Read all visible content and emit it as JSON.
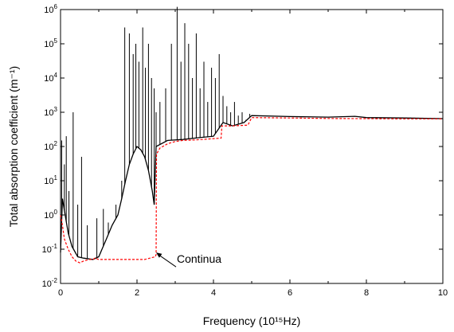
{
  "chart_data": {
    "type": "line",
    "xlabel": "Frequency (10¹⁵Hz)",
    "ylabel": "Total absorption coefficient (m⁻¹)",
    "xlim": [
      0,
      10
    ],
    "ylim": [
      0.01,
      1000000
    ],
    "yscale": "log",
    "grid": false,
    "x_ticks": [
      0,
      2,
      4,
      6,
      8,
      10
    ],
    "y_ticks": [
      0.01,
      0.1,
      1,
      10,
      100,
      1000,
      10000,
      100000,
      1000000
    ],
    "y_tick_labels": [
      {
        "base": "10",
        "exp": "-2"
      },
      {
        "base": "10",
        "exp": "-1"
      },
      {
        "base": "10",
        "exp": "0"
      },
      {
        "base": "10",
        "exp": "1"
      },
      {
        "base": "10",
        "exp": "2"
      },
      {
        "base": "10",
        "exp": "3"
      },
      {
        "base": "10",
        "exp": "4"
      },
      {
        "base": "10",
        "exp": "5"
      },
      {
        "base": "10",
        "exp": "6"
      }
    ],
    "series": [
      {
        "style": "solid",
        "color": "#000000",
        "lines": [
          {
            "x": 0.03,
            "y": 150
          },
          {
            "x": 0.1,
            "y": 30
          },
          {
            "x": 0.15,
            "y": 200
          },
          {
            "x": 0.22,
            "y": 5
          },
          {
            "x": 0.33,
            "y": 1000
          },
          {
            "x": 0.45,
            "y": 2
          },
          {
            "x": 0.55,
            "y": 50
          },
          {
            "x": 0.7,
            "y": 0.5
          },
          {
            "x": 0.95,
            "y": 0.8
          },
          {
            "x": 1.12,
            "y": 1.5
          },
          {
            "x": 1.25,
            "y": 0.6
          },
          {
            "x": 1.45,
            "y": 2
          },
          {
            "x": 1.6,
            "y": 10
          },
          {
            "x": 1.68,
            "y": 300000
          },
          {
            "x": 1.8,
            "y": 200000
          },
          {
            "x": 1.9,
            "y": 50000
          },
          {
            "x": 1.97,
            "y": 100000
          },
          {
            "x": 2.05,
            "y": 30000
          },
          {
            "x": 2.15,
            "y": 300000
          },
          {
            "x": 2.22,
            "y": 20000
          },
          {
            "x": 2.3,
            "y": 100000
          },
          {
            "x": 2.38,
            "y": 10000
          },
          {
            "x": 2.45,
            "y": 5000
          },
          {
            "x": 2.5,
            "y": 1000
          },
          {
            "x": 2.6,
            "y": 2000
          },
          {
            "x": 2.75,
            "y": 5000
          },
          {
            "x": 2.9,
            "y": 100000
          },
          {
            "x": 3.05,
            "y": 1200000
          },
          {
            "x": 3.15,
            "y": 30000
          },
          {
            "x": 3.25,
            "y": 400000
          },
          {
            "x": 3.35,
            "y": 100000
          },
          {
            "x": 3.45,
            "y": 10000
          },
          {
            "x": 3.55,
            "y": 200000
          },
          {
            "x": 3.65,
            "y": 5000
          },
          {
            "x": 3.75,
            "y": 30000
          },
          {
            "x": 3.85,
            "y": 2000
          },
          {
            "x": 3.95,
            "y": 20000
          },
          {
            "x": 4.05,
            "y": 10000
          },
          {
            "x": 4.15,
            "y": 50000
          },
          {
            "x": 4.25,
            "y": 3000
          },
          {
            "x": 4.35,
            "y": 1500
          },
          {
            "x": 4.45,
            "y": 1000
          },
          {
            "x": 4.55,
            "y": 2000
          },
          {
            "x": 4.65,
            "y": 800
          },
          {
            "x": 4.75,
            "y": 1000
          },
          {
            "x": 4.85,
            "y": 600
          },
          {
            "x": 4.95,
            "y": 900
          }
        ],
        "envelope": [
          [
            0.0,
            0.08
          ],
          [
            0.05,
            3
          ],
          [
            0.12,
            1
          ],
          [
            0.2,
            0.3
          ],
          [
            0.3,
            0.12
          ],
          [
            0.45,
            0.06
          ],
          [
            0.6,
            0.055
          ],
          [
            0.85,
            0.05
          ],
          [
            1.0,
            0.06
          ],
          [
            1.2,
            0.2
          ],
          [
            1.35,
            0.5
          ],
          [
            1.5,
            1
          ],
          [
            1.6,
            3
          ],
          [
            1.7,
            10
          ],
          [
            1.8,
            30
          ],
          [
            1.9,
            60
          ],
          [
            2.0,
            100
          ],
          [
            2.1,
            80
          ],
          [
            2.2,
            50
          ],
          [
            2.3,
            20
          ],
          [
            2.4,
            5
          ],
          [
            2.45,
            2
          ],
          [
            2.5,
            100
          ],
          [
            2.8,
            150
          ],
          [
            3.2,
            160
          ],
          [
            3.6,
            180
          ],
          [
            4.0,
            200
          ],
          [
            4.25,
            500
          ],
          [
            4.5,
            400
          ],
          [
            4.8,
            500
          ],
          [
            5.0,
            800
          ],
          [
            6.0,
            750
          ],
          [
            7.0,
            720
          ],
          [
            7.7,
            760
          ],
          [
            8.0,
            700
          ],
          [
            9.0,
            680
          ],
          [
            10.0,
            650
          ]
        ]
      },
      {
        "style": "dashed",
        "color": "#ff0000",
        "points": [
          [
            0.0,
            1
          ],
          [
            0.05,
            0.5
          ],
          [
            0.1,
            0.2
          ],
          [
            0.2,
            0.1
          ],
          [
            0.3,
            0.06
          ],
          [
            0.4,
            0.045
          ],
          [
            0.5,
            0.04
          ],
          [
            0.6,
            0.045
          ],
          [
            0.75,
            0.05
          ],
          [
            0.85,
            0.05
          ],
          [
            0.9,
            0.055
          ],
          [
            1.0,
            0.05
          ],
          [
            1.6,
            0.05
          ],
          [
            2.2,
            0.05
          ],
          [
            2.48,
            0.06
          ],
          [
            2.5,
            0.07
          ],
          [
            2.51,
            60
          ],
          [
            2.6,
            90
          ],
          [
            2.8,
            120
          ],
          [
            3.0,
            140
          ],
          [
            3.2,
            150
          ],
          [
            3.5,
            155
          ],
          [
            3.7,
            160
          ],
          [
            4.0,
            170
          ],
          [
            4.2,
            175
          ],
          [
            4.22,
            400
          ],
          [
            4.5,
            400
          ],
          [
            4.9,
            420
          ],
          [
            5.0,
            700
          ],
          [
            6.0,
            680
          ],
          [
            7.0,
            660
          ],
          [
            8.0,
            650
          ],
          [
            9.0,
            640
          ],
          [
            10.0,
            640
          ]
        ]
      }
    ],
    "annotations": [
      {
        "text": "Continua",
        "arrow_to": {
          "x": 2.5,
          "y": 0.08
        }
      }
    ]
  }
}
